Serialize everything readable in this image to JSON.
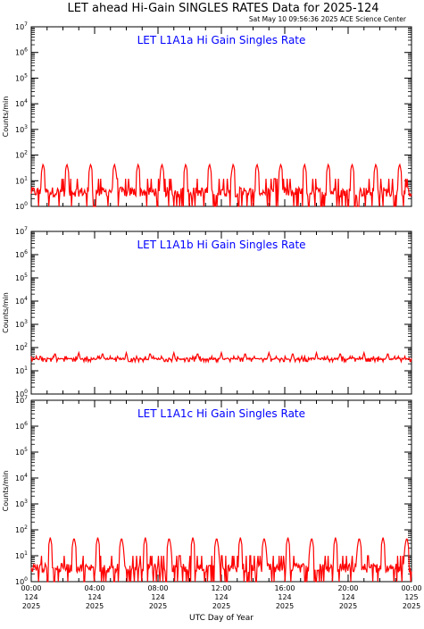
{
  "page": {
    "title": "LET ahead Hi-Gain SINGLES RATES Data for 2025-124",
    "timestamp": "Sat May 10 09:56:36 2025 ACE Science Center",
    "xlabel": "UTC Day of Year"
  },
  "colors": {
    "series": "#ff0000",
    "panel_title": "#0000ff",
    "axis": "#000000"
  },
  "chart_data": [
    {
      "type": "line",
      "title": "LET L1A1a Hi Gain Singles Rate",
      "ylabel": "Counts/min",
      "yscale": "log",
      "ylim": [
        1,
        10000000
      ],
      "ytick_labels": [
        {
          "base": "10",
          "exp": "0"
        },
        {
          "base": "10",
          "exp": "1"
        },
        {
          "base": "10",
          "exp": "2"
        },
        {
          "base": "10",
          "exp": "3"
        },
        {
          "base": "10",
          "exp": "4"
        },
        {
          "base": "10",
          "exp": "5"
        },
        {
          "base": "10",
          "exp": "6"
        },
        {
          "base": "10",
          "exp": "7"
        }
      ],
      "xlim_hours": [
        0,
        24
      ],
      "series": [
        {
          "baseline": 5,
          "noise_range": [
            1,
            12
          ],
          "peak_hours": [
            0.75,
            2.25,
            3.75,
            5.25,
            6.75,
            8.25,
            9.75,
            11.25,
            12.75,
            14.25,
            15.75,
            17.25,
            18.75,
            20.25,
            21.75,
            23.25
          ],
          "peak_value": 45
        }
      ]
    },
    {
      "type": "line",
      "title": "LET L1A1b Hi Gain Singles Rate",
      "ylabel": "Counts/min",
      "yscale": "log",
      "ylim": [
        1,
        10000000
      ],
      "ytick_labels": [
        {
          "base": "10",
          "exp": "0"
        },
        {
          "base": "10",
          "exp": "1"
        },
        {
          "base": "10",
          "exp": "2"
        },
        {
          "base": "10",
          "exp": "3"
        },
        {
          "base": "10",
          "exp": "4"
        },
        {
          "base": "10",
          "exp": "5"
        },
        {
          "base": "10",
          "exp": "6"
        },
        {
          "base": "10",
          "exp": "7"
        }
      ],
      "xlim_hours": [
        0,
        24
      ],
      "series": [
        {
          "baseline": 33,
          "noise_range": [
            25,
            42
          ],
          "peak_hours": [
            1.5,
            3.0,
            4.5,
            6.0,
            7.5,
            9.0,
            10.5,
            12.0,
            13.5,
            15.0,
            16.5,
            18.0,
            19.5,
            21.0,
            22.5
          ],
          "peak_value": 60
        }
      ]
    },
    {
      "type": "line",
      "title": "LET L1A1c Hi Gain Singles Rate",
      "ylabel": "Counts/min",
      "yscale": "log",
      "ylim": [
        1,
        10000000
      ],
      "ytick_labels": [
        {
          "base": "10",
          "exp": "0"
        },
        {
          "base": "10",
          "exp": "1"
        },
        {
          "base": "10",
          "exp": "2"
        },
        {
          "base": "10",
          "exp": "3"
        },
        {
          "base": "10",
          "exp": "4"
        },
        {
          "base": "10",
          "exp": "5"
        },
        {
          "base": "10",
          "exp": "6"
        },
        {
          "base": "10",
          "exp": "7"
        }
      ],
      "xlim_hours": [
        0,
        24
      ],
      "series": [
        {
          "baseline": 6,
          "noise_range": [
            1,
            10
          ],
          "peak_hours": [
            1.2,
            2.7,
            4.2,
            5.7,
            7.2,
            8.7,
            10.2,
            11.7,
            13.2,
            14.7,
            16.2,
            17.7,
            19.2,
            20.7,
            22.2,
            23.7
          ],
          "peak_value": 50
        }
      ]
    }
  ],
  "x_ticks": [
    {
      "hour": 0,
      "time": "00:00",
      "doy": "124",
      "year": "2025"
    },
    {
      "hour": 4,
      "time": "04:00",
      "doy": "124",
      "year": "2025"
    },
    {
      "hour": 8,
      "time": "08:00",
      "doy": "124",
      "year": "2025"
    },
    {
      "hour": 12,
      "time": "12:00",
      "doy": "124",
      "year": "2025"
    },
    {
      "hour": 16,
      "time": "16:00",
      "doy": "124",
      "year": "2025"
    },
    {
      "hour": 20,
      "time": "20:00",
      "doy": "124",
      "year": "2025"
    },
    {
      "hour": 24,
      "time": "00:00",
      "doy": "125",
      "year": "2025"
    }
  ]
}
